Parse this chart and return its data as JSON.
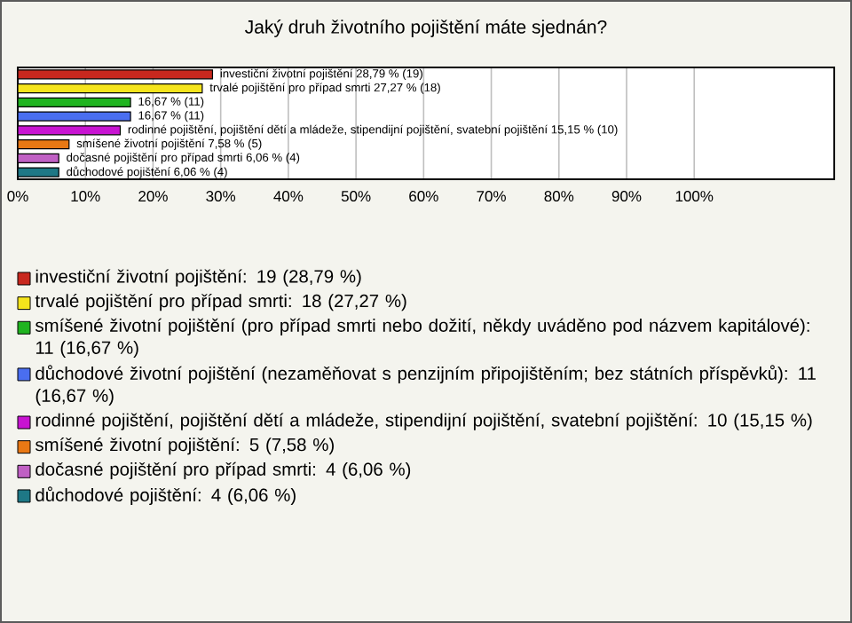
{
  "chart_data": {
    "type": "bar",
    "orientation": "horizontal",
    "title": "Jaký druh životního pojištění máte sjednán?",
    "categories": [
      null,
      null,
      null,
      null,
      null,
      null,
      null,
      null
    ],
    "xlim": [
      0,
      120.7
    ],
    "xticks": [
      {
        "value": 0,
        "label": "0%"
      },
      {
        "value": 10,
        "label": "10%"
      },
      {
        "value": 20,
        "label": "20%"
      },
      {
        "value": 30,
        "label": "30%"
      },
      {
        "value": 40,
        "label": "40%"
      },
      {
        "value": 50,
        "label": "50%"
      },
      {
        "value": 60,
        "label": "60%"
      },
      {
        "value": 70,
        "label": "70%"
      },
      {
        "value": 80,
        "label": "80%"
      },
      {
        "value": 90,
        "label": "90%"
      },
      {
        "value": 100,
        "label": "100%"
      }
    ],
    "grid": "x",
    "legend": "bottom",
    "series": [
      {
        "name": "investiční životní pojištění: 19 (28,79 %)",
        "color": "#c8281e",
        "values": [
          28.79,
          null,
          null,
          null,
          null,
          null,
          null,
          null
        ],
        "value_labels": [
          "investiční životní pojištění 28,79 % (19)",
          null,
          null,
          null,
          null,
          null,
          null,
          null
        ]
      },
      {
        "name": "trvalé pojištění pro případ smrti: 18 (27,27 %)",
        "color": "#f5e41c",
        "values": [
          null,
          27.27,
          null,
          null,
          null,
          null,
          null,
          null
        ],
        "value_labels": [
          null,
          "trvalé pojištění pro případ smrti 27,27 % (18)",
          null,
          null,
          null,
          null,
          null,
          null
        ]
      },
      {
        "name": "smíšené životní pojištění (pro případ smrti nebo dožití, někdy uváděno pod názvem kapitálové): 11 (16,67 %)",
        "color": "#20b420",
        "values": [
          null,
          null,
          16.67,
          null,
          null,
          null,
          null,
          null
        ],
        "value_labels": [
          null,
          null,
          "16,67 % (11)",
          null,
          null,
          null,
          null,
          null
        ]
      },
      {
        "name": "důchodové životní pojištění (nezaměňovat s penzijním připojištěním; bez státních příspěvků): 11 (16,67 %)",
        "color": "#4a6ef0",
        "values": [
          null,
          null,
          null,
          16.67,
          null,
          null,
          null,
          null
        ],
        "value_labels": [
          null,
          null,
          null,
          "16,67 % (11)",
          null,
          null,
          null,
          null
        ]
      },
      {
        "name": "rodinné pojištění, pojištění dětí a mládeže, stipendijní pojištění, svatební pojištění: 10 (15,15 %)",
        "color": "#c814d2",
        "values": [
          null,
          null,
          null,
          null,
          15.15,
          null,
          null,
          null
        ],
        "value_labels": [
          null,
          null,
          null,
          null,
          "rodinné pojištění, pojištění dětí a mládeže, stipendijní pojištění, svatební pojištění 15,15 % (10)",
          null,
          null,
          null
        ]
      },
      {
        "name": "smíšené životní pojištění: 5 (7,58 %)",
        "color": "#e87814",
        "values": [
          null,
          null,
          null,
          null,
          null,
          7.58,
          null,
          null
        ],
        "value_labels": [
          null,
          null,
          null,
          null,
          null,
          "smíšené životní pojištění 7,58 % (5)",
          null,
          null
        ]
      },
      {
        "name": "dočasné pojištění pro případ smrti: 4 (6,06 %)",
        "color": "#c060c4",
        "values": [
          null,
          null,
          null,
          null,
          null,
          null,
          6.06,
          null
        ],
        "value_labels": [
          null,
          null,
          null,
          null,
          null,
          null,
          "dočasné pojištění pro případ smrti 6,06 % (4)",
          null
        ]
      },
      {
        "name": "důchodové pojištění: 4 (6,06 %)",
        "color": "#1e7886",
        "values": [
          null,
          null,
          null,
          null,
          null,
          null,
          null,
          6.06
        ],
        "value_labels": [
          null,
          null,
          null,
          null,
          null,
          null,
          null,
          "důchodové pojištění 6,06 % (4)"
        ]
      }
    ]
  }
}
